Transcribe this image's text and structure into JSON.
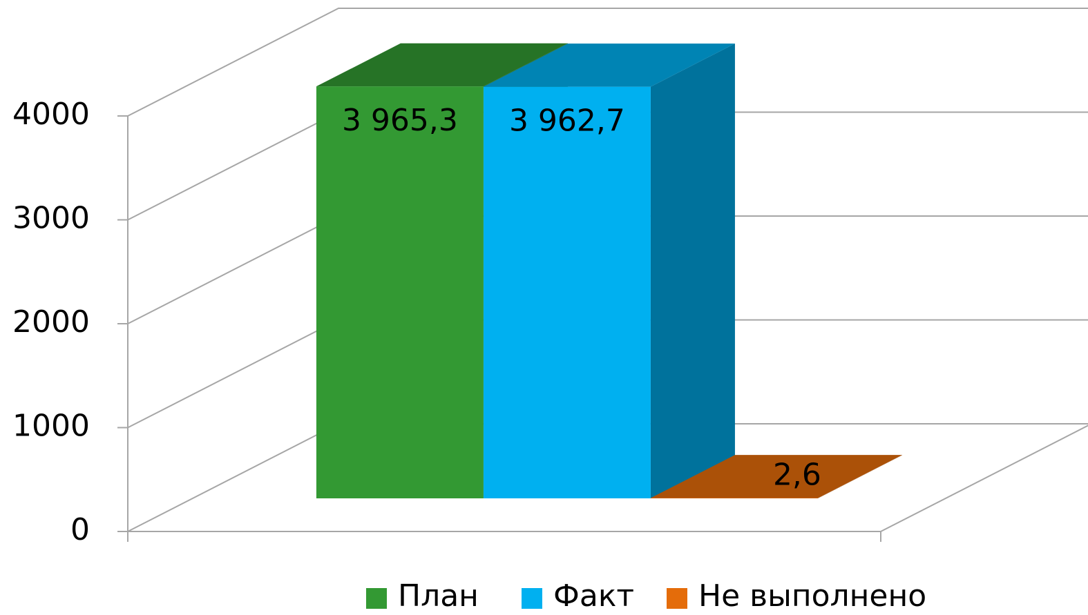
{
  "chart_data": {
    "type": "bar3d",
    "categories": [
      null
    ],
    "series": [
      {
        "name": "План",
        "color": "#339933",
        "values": [
          3965.3
        ],
        "value_labels": [
          "3 965,3"
        ]
      },
      {
        "name": "Факт",
        "color": "#00b0f0",
        "values": [
          3962.7
        ],
        "value_labels": [
          "3 962,7"
        ]
      },
      {
        "name": "Не выполнено",
        "color": "#e46c0a",
        "values": [
          2.6
        ],
        "value_labels": [
          "2,6"
        ]
      }
    ],
    "ylim": [
      0,
      4000
    ],
    "yticks": [
      0,
      1000,
      2000,
      3000,
      4000
    ],
    "grid": true,
    "legend": "bottom"
  }
}
